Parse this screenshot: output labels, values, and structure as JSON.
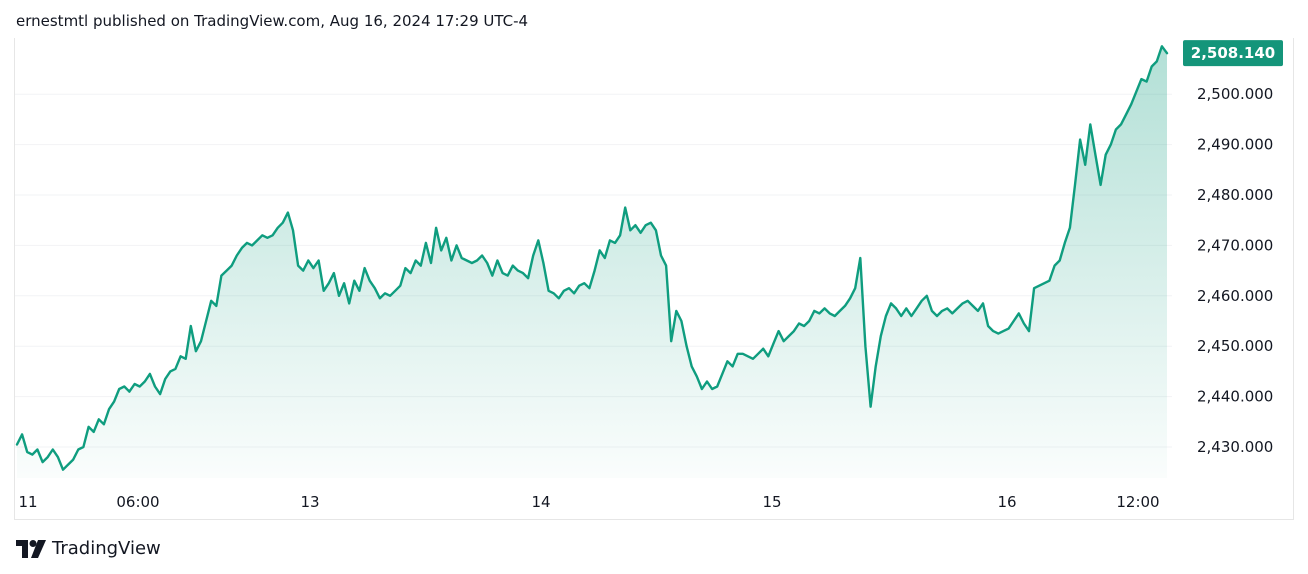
{
  "header": {
    "text": "ernestmtl published on TradingView.com, Aug 16, 2024 17:29 UTC-4"
  },
  "footer": {
    "brand": "TradingView"
  },
  "colors": {
    "line": "#0f9d7f",
    "fill_top": "#0f9d7f",
    "tag_bg": "#14957a",
    "text": "#131722",
    "grid": "#f2f3f5"
  },
  "chart_data": {
    "type": "area",
    "title": "",
    "xlabel": "",
    "ylabel": "",
    "x_tick_labels": [
      "11",
      "06:00",
      "13",
      "14",
      "15",
      "16",
      "12:00"
    ],
    "y_tick_labels": [
      "2,430.000",
      "2,440.000",
      "2,450.000",
      "2,460.000",
      "2,470.000",
      "2,480.000",
      "2,490.000",
      "2,500.000"
    ],
    "y_ticks": [
      2430,
      2440,
      2450,
      2460,
      2470,
      2480,
      2490,
      2500
    ],
    "ylim": [
      2425,
      2510
    ],
    "last_value_label": "2,508.140",
    "last_value": 2508.14,
    "series": [
      {
        "values": [
          2430.5,
          2432.5,
          2429.0,
          2428.5,
          2429.5,
          2427.0,
          2428.0,
          2429.5,
          2428.0,
          2425.5,
          2426.5,
          2427.5,
          2429.5,
          2430.0,
          2434.0,
          2433.0,
          2435.5,
          2434.5,
          2437.5,
          2439.0,
          2441.5,
          2442.0,
          2441.0,
          2442.5,
          2442.0,
          2443.0,
          2444.5,
          2442.0,
          2440.5,
          2443.5,
          2445.0,
          2445.5,
          2448.0,
          2447.5,
          2454.0,
          2449.0,
          2451.0,
          2455.0,
          2459.0,
          2458.0,
          2464.0,
          2465.0,
          2466.0,
          2468.0,
          2469.5,
          2470.5,
          2470.0,
          2471.0,
          2472.0,
          2471.5,
          2472.0,
          2473.5,
          2474.5,
          2476.5,
          2473.0,
          2466.0,
          2465.0,
          2467.0,
          2465.5,
          2467.0,
          2461.0,
          2462.5,
          2464.5,
          2460.0,
          2462.5,
          2458.5,
          2463.0,
          2461.0,
          2465.5,
          2463.0,
          2461.5,
          2459.5,
          2460.5,
          2460.0,
          2461.0,
          2462.0,
          2465.5,
          2464.5,
          2467.0,
          2466.0,
          2470.5,
          2466.5,
          2473.5,
          2469.0,
          2471.5,
          2467.0,
          2470.0,
          2467.5,
          2467.0,
          2466.5,
          2467.0,
          2468.0,
          2466.5,
          2464.0,
          2467.0,
          2464.5,
          2464.0,
          2466.0,
          2465.0,
          2464.5,
          2463.5,
          2468.0,
          2471.0,
          2466.5,
          2461.0,
          2460.5,
          2459.5,
          2461.0,
          2461.5,
          2460.5,
          2462.0,
          2462.5,
          2461.5,
          2465.0,
          2469.0,
          2467.5,
          2471.0,
          2470.5,
          2472.0,
          2477.5,
          2473.0,
          2474.0,
          2472.5,
          2474.0,
          2474.5,
          2473.0,
          2468.0,
          2466.0,
          2451.0,
          2457.0,
          2455.0,
          2450.0,
          2446.0,
          2444.0,
          2441.5,
          2443.0,
          2441.5,
          2442.0,
          2444.5,
          2447.0,
          2446.0,
          2448.5,
          2448.5,
          2448.0,
          2447.5,
          2448.5,
          2449.5,
          2448.0,
          2450.5,
          2453.0,
          2451.0,
          2452.0,
          2453.0,
          2454.5,
          2454.0,
          2455.0,
          2457.0,
          2456.5,
          2457.5,
          2456.5,
          2456.0,
          2457.0,
          2458.0,
          2459.5,
          2461.5,
          2467.5,
          2450.0,
          2438.0,
          2446.0,
          2452.0,
          2456.0,
          2458.5,
          2457.5,
          2456.0,
          2457.5,
          2456.0,
          2457.5,
          2459.0,
          2460.0,
          2457.0,
          2456.0,
          2457.0,
          2457.5,
          2456.5,
          2457.5,
          2458.5,
          2459.0,
          2458.0,
          2457.0,
          2458.5,
          2454.0,
          2453.0,
          2452.5,
          2453.0,
          2453.5,
          2455.0,
          2456.5,
          2454.5,
          2453.0,
          2461.5,
          2462.0,
          2462.5,
          2463.0,
          2466.0,
          2467.0,
          2470.5,
          2473.5,
          2482.0,
          2491.0,
          2486.0,
          2494.0,
          2488.0,
          2482.0,
          2488.0,
          2490.0,
          2493.0,
          2494.0,
          2496.0,
          2498.0,
          2500.5,
          2503.0,
          2502.5,
          2505.5,
          2506.5,
          2509.5,
          2508.14
        ]
      }
    ]
  }
}
